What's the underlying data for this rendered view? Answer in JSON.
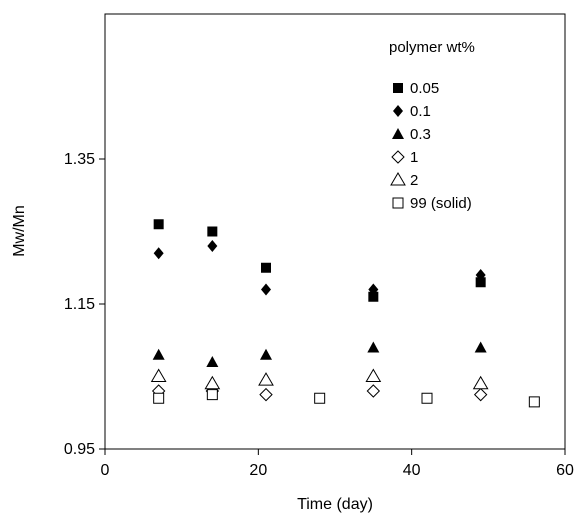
{
  "chart_data": {
    "type": "scatter",
    "xlabel": "Time (day)",
    "ylabel": "Mw/Mn",
    "xlim": [
      0,
      60
    ],
    "ylim": [
      0.95,
      1.55
    ],
    "xticks": [
      0,
      20,
      40,
      60
    ],
    "yticks": [
      0.95,
      1.15,
      1.35
    ],
    "xtick_labels": [
      "0",
      "20",
      "40",
      "60"
    ],
    "ytick_labels": [
      "0.95",
      "1.15",
      "1.35"
    ],
    "grid": false,
    "legend": {
      "title": "polymer wt%",
      "placement": "top-right"
    },
    "series": [
      {
        "name": "0.05",
        "marker": "filled-square",
        "x": [
          7,
          14,
          21,
          35,
          49
        ],
        "y": [
          1.26,
          1.25,
          1.2,
          1.16,
          1.18
        ]
      },
      {
        "name": "0.1",
        "marker": "filled-diamond",
        "x": [
          7,
          14,
          21,
          35,
          49
        ],
        "y": [
          1.22,
          1.23,
          1.17,
          1.17,
          1.19
        ]
      },
      {
        "name": "0.3",
        "marker": "filled-triangle",
        "x": [
          7,
          14,
          21,
          35,
          49
        ],
        "y": [
          1.08,
          1.07,
          1.08,
          1.09,
          1.09
        ]
      },
      {
        "name": "1",
        "marker": "open-diamond",
        "x": [
          7,
          14,
          21,
          35,
          49
        ],
        "y": [
          1.03,
          1.03,
          1.025,
          1.03,
          1.025
        ]
      },
      {
        "name": "2",
        "marker": "open-triangle",
        "x": [
          7,
          14,
          21,
          35,
          49
        ],
        "y": [
          1.05,
          1.04,
          1.045,
          1.05,
          1.04
        ]
      },
      {
        "name": "99 (solid)",
        "marker": "open-square",
        "x": [
          7,
          14,
          28,
          42,
          56
        ],
        "y": [
          1.02,
          1.025,
          1.02,
          1.02,
          1.015
        ]
      }
    ]
  }
}
